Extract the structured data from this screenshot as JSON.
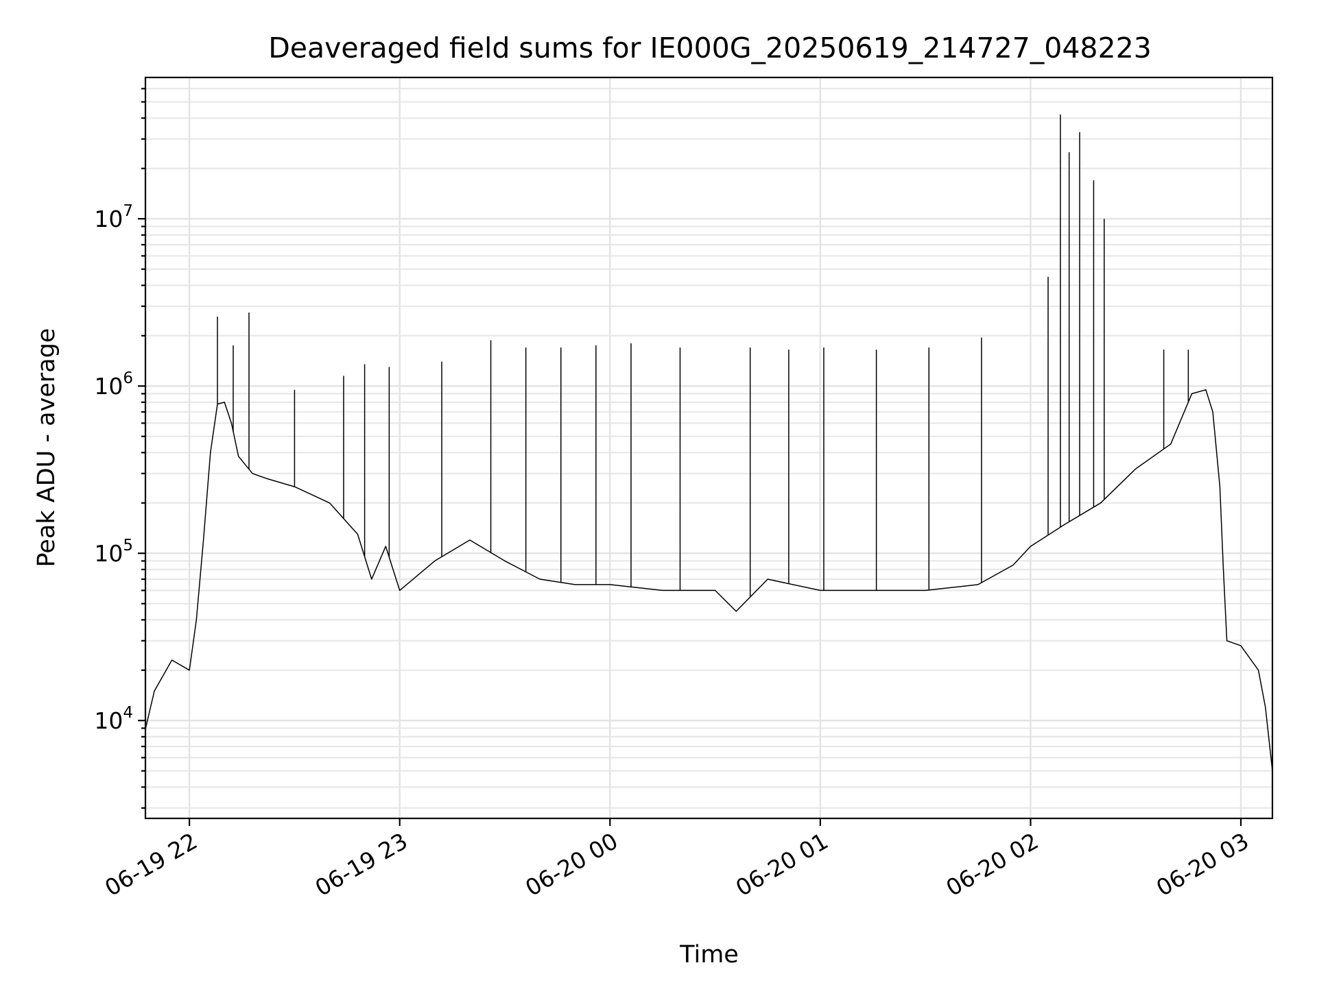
{
  "chart_data": {
    "type": "line",
    "title": "Deaveraged field sums for IE000G_20250619_214727_048223",
    "xlabel": "Time",
    "ylabel": "Peak ADU - average",
    "yscale": "log",
    "xlim": [
      "2025-06-19 21:47:27",
      "2025-06-20 03:09:00"
    ],
    "ylim": [
      2600,
      70000000
    ],
    "grid": true,
    "x_ticks": [
      "06-19 22",
      "06-19 23",
      "06-20 00",
      "06-20 01",
      "06-20 02",
      "06-20 03"
    ],
    "y_ticks": [
      {
        "base": "10",
        "exp": "4",
        "value": 10000
      },
      {
        "base": "10",
        "exp": "5",
        "value": 100000
      },
      {
        "base": "10",
        "exp": "6",
        "value": 1000000
      },
      {
        "base": "10",
        "exp": "7",
        "value": 10000000
      }
    ],
    "series": [
      {
        "color": "#000000",
        "x": [
          "2025-06-19 21:47:30",
          "2025-06-19 21:50:00",
          "2025-06-19 21:55:00",
          "2025-06-19 22:00:00",
          "2025-06-19 22:02:00",
          "2025-06-19 22:04:00",
          "2025-06-19 22:06:00",
          "2025-06-19 22:08:00",
          "2025-06-19 22:10:00",
          "2025-06-19 22:12:00",
          "2025-06-19 22:14:00",
          "2025-06-19 22:18:00",
          "2025-06-19 22:22:00",
          "2025-06-19 22:30:00",
          "2025-06-19 22:40:00",
          "2025-06-19 22:48:00",
          "2025-06-19 22:52:00",
          "2025-06-19 22:56:00",
          "2025-06-19 23:00:00",
          "2025-06-19 23:10:00",
          "2025-06-19 23:20:00",
          "2025-06-19 23:30:00",
          "2025-06-19 23:40:00",
          "2025-06-19 23:50:00",
          "2025-06-20 00:00:00",
          "2025-06-20 00:15:00",
          "2025-06-20 00:30:00",
          "2025-06-20 00:36:00",
          "2025-06-20 00:45:00",
          "2025-06-20 01:00:00",
          "2025-06-20 01:15:00",
          "2025-06-20 01:30:00",
          "2025-06-20 01:45:00",
          "2025-06-20 01:55:00",
          "2025-06-20 02:00:00",
          "2025-06-20 02:10:00",
          "2025-06-20 02:20:00",
          "2025-06-20 02:30:00",
          "2025-06-20 02:40:00",
          "2025-06-20 02:46:00",
          "2025-06-20 02:50:00",
          "2025-06-20 02:52:00",
          "2025-06-20 02:54:00",
          "2025-06-20 02:55:00",
          "2025-06-20 02:56:00",
          "2025-06-20 03:00:00",
          "2025-06-20 03:05:00",
          "2025-06-20 03:07:00",
          "2025-06-20 03:09:00"
        ],
        "y": [
          9000,
          15000,
          23000,
          20000,
          40000,
          120000,
          400000,
          780000,
          800000,
          600000,
          380000,
          300000,
          280000,
          250000,
          200000,
          130000,
          70000,
          110000,
          60000,
          90000,
          120000,
          90000,
          70000,
          65000,
          65000,
          60000,
          60000,
          45000,
          70000,
          60000,
          60000,
          60000,
          65000,
          85000,
          110000,
          150000,
          200000,
          320000,
          450000,
          900000,
          950000,
          700000,
          250000,
          80000,
          30000,
          28000,
          20000,
          12000,
          5000
        ]
      }
    ],
    "spikes": [
      {
        "x": "2025-06-19 22:08:00",
        "y": 2600000
      },
      {
        "x": "2025-06-19 22:12:30",
        "y": 1750000
      },
      {
        "x": "2025-06-19 22:17:00",
        "y": 2750000
      },
      {
        "x": "2025-06-19 22:30:00",
        "y": 950000
      },
      {
        "x": "2025-06-19 22:44:00",
        "y": 1150000
      },
      {
        "x": "2025-06-19 22:50:00",
        "y": 1350000
      },
      {
        "x": "2025-06-19 22:57:00",
        "y": 1300000
      },
      {
        "x": "2025-06-19 23:12:00",
        "y": 1400000
      },
      {
        "x": "2025-06-19 23:26:00",
        "y": 1880000
      },
      {
        "x": "2025-06-19 23:36:00",
        "y": 1700000
      },
      {
        "x": "2025-06-19 23:46:00",
        "y": 1700000
      },
      {
        "x": "2025-06-19 23:56:00",
        "y": 1750000
      },
      {
        "x": "2025-06-20 00:06:00",
        "y": 1800000
      },
      {
        "x": "2025-06-20 00:20:00",
        "y": 1700000
      },
      {
        "x": "2025-06-20 00:40:00",
        "y": 1700000
      },
      {
        "x": "2025-06-20 00:51:00",
        "y": 1650000
      },
      {
        "x": "2025-06-20 01:01:00",
        "y": 1700000
      },
      {
        "x": "2025-06-20 01:16:00",
        "y": 1650000
      },
      {
        "x": "2025-06-20 01:31:00",
        "y": 1700000
      },
      {
        "x": "2025-06-20 01:46:00",
        "y": 1950000
      },
      {
        "x": "2025-06-20 02:05:00",
        "y": 4500000
      },
      {
        "x": "2025-06-20 02:08:30",
        "y": 42000000
      },
      {
        "x": "2025-06-20 02:11:00",
        "y": 25000000
      },
      {
        "x": "2025-06-20 02:14:00",
        "y": 33000000
      },
      {
        "x": "2025-06-20 02:18:00",
        "y": 17000000
      },
      {
        "x": "2025-06-20 02:21:00",
        "y": 10000000
      },
      {
        "x": "2025-06-20 02:38:00",
        "y": 1650000
      },
      {
        "x": "2025-06-20 02:45:00",
        "y": 1650000
      }
    ]
  }
}
